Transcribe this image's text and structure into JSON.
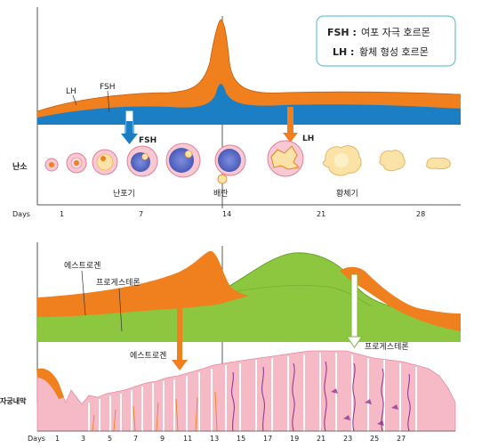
{
  "legend": {
    "fsh_abbr": "FSH :",
    "fsh_text": "여포 자극 호르몬",
    "lh_abbr": "LH :",
    "lh_text": "황체 형성 호르몬"
  },
  "top_chart": {
    "curve_labels": {
      "lh": "LH",
      "fsh": "FSH"
    },
    "arrow_labels": {
      "fsh": "FSH",
      "lh": "LH"
    },
    "row_label": "난소",
    "phase_labels": {
      "follicular": "난포기",
      "ovulation": "배란",
      "luteal": "황체기"
    },
    "axis": {
      "label": "Days",
      "ticks": [
        "1",
        "7",
        "14",
        "21",
        "28"
      ]
    }
  },
  "bottom_chart": {
    "curve_labels": {
      "estrogen": "에스트로겐",
      "progesterone": "프로게스테론"
    },
    "arrow_labels": {
      "estrogen": "에스트로겐",
      "progesterone": "프로게스테론"
    },
    "row_label": "자궁내막",
    "axis": {
      "label": "Days",
      "ticks": [
        "1",
        "3",
        "5",
        "7",
        "9",
        "11",
        "13",
        "15",
        "17",
        "19",
        "21",
        "23",
        "25",
        "27"
      ]
    }
  },
  "colors": {
    "orange": "#F07F1E",
    "blue": "#1C7FC4",
    "green": "#8DC63F",
    "pink": "#F6B9C6",
    "vessel": "#8A2E8C"
  }
}
